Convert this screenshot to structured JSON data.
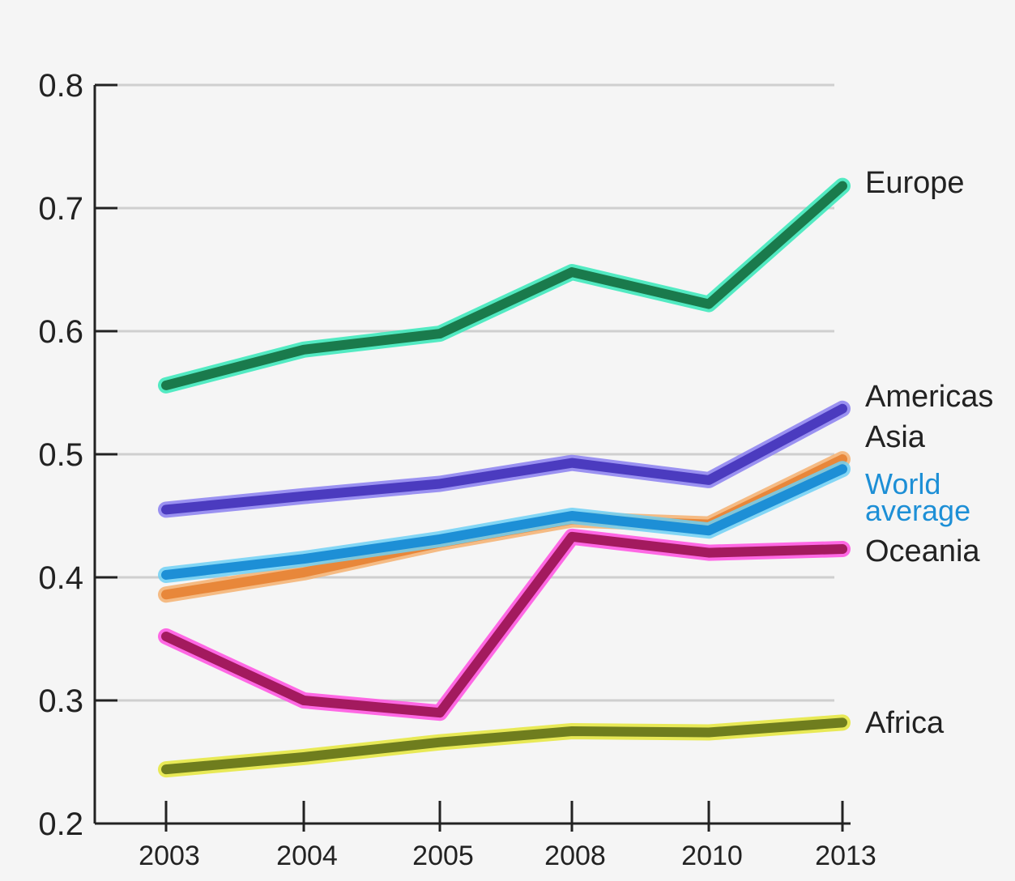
{
  "chart_data": {
    "type": "line",
    "title": "",
    "xlabel": "",
    "ylabel": "",
    "x": [
      "2003",
      "2004",
      "2005",
      "2008",
      "2010",
      "2013"
    ],
    "ylim": [
      0.2,
      0.8
    ],
    "yticks": [
      "0.2",
      "0.3",
      "0.4",
      "0.5",
      "0.6",
      "0.7",
      "0.8"
    ],
    "grid": true,
    "series": [
      {
        "name": "Europe",
        "color": "#1a7a4c",
        "halo": "#35e7b8",
        "values": [
          0.556,
          0.585,
          0.598,
          0.648,
          0.622,
          0.718
        ]
      },
      {
        "name": "Americas",
        "color": "#4b3bbf",
        "halo": "#8a7ff0",
        "values": [
          0.455,
          0.466,
          0.476,
          0.493,
          0.479,
          0.537
        ]
      },
      {
        "name": "Asia",
        "color": "#e8873a",
        "halo": "#f5b070",
        "values": [
          0.386,
          0.404,
          0.428,
          0.447,
          0.443,
          0.496
        ]
      },
      {
        "name": "World average",
        "color": "#1d8fd6",
        "halo": "#6fd0f5",
        "values": [
          0.402,
          0.415,
          0.431,
          0.45,
          0.438,
          0.488
        ]
      },
      {
        "name": "Oceania",
        "color": "#a31a5e",
        "halo": "#ff4fe0",
        "values": [
          0.352,
          0.3,
          0.29,
          0.433,
          0.42,
          0.423
        ]
      },
      {
        "name": "Africa",
        "color": "#6f7d1e",
        "halo": "#e5e63a",
        "values": [
          0.244,
          0.254,
          0.266,
          0.275,
          0.274,
          0.282
        ]
      }
    ]
  }
}
